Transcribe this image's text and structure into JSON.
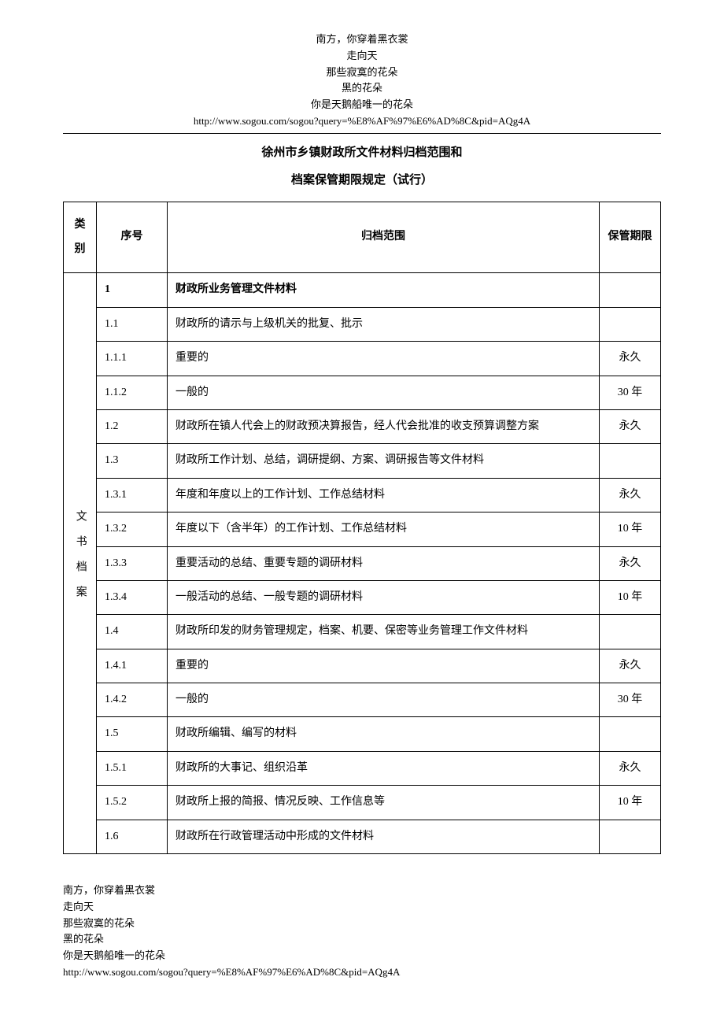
{
  "poem": {
    "l1": "南方，你穿着黑衣裳",
    "l2": "走向天",
    "l3": "那些寂寞的花朵",
    "l4": "黑的花朵",
    "l5": "你是天鹅船唯一的花朵",
    "url": "http://www.sogou.com/sogou?query=%E8%AF%97%E6%AD%8C&pid=AQg4A"
  },
  "title": "徐州市乡镇财政所文件材料归档范围和",
  "subtitle": "档案保管期限规定（试行）",
  "headers": {
    "category": "类别",
    "seq": "序号",
    "scope": "归档范围",
    "term": "保管期限"
  },
  "category_label": "文书档案",
  "rows": [
    {
      "seq": "1",
      "scope": "财政所业务管理文件材料",
      "term": "",
      "section": true
    },
    {
      "seq": "1.1",
      "scope": "财政所的请示与上级机关的批复、批示",
      "term": ""
    },
    {
      "seq": "1.1.1",
      "scope": "重要的",
      "term": "永久"
    },
    {
      "seq": "1.1.2",
      "scope": "一般的",
      "term": "30 年"
    },
    {
      "seq": "1.2",
      "scope": "财政所在镇人代会上的财政预决算报告，经人代会批准的收支预算调整方案",
      "term": "永久"
    },
    {
      "seq": "1.3",
      "scope": "财政所工作计划、总结，调研提纲、方案、调研报告等文件材料",
      "term": ""
    },
    {
      "seq": "1.3.1",
      "scope": "年度和年度以上的工作计划、工作总结材料",
      "term": "永久"
    },
    {
      "seq": "1.3.2",
      "scope": "年度以下（含半年）的工作计划、工作总结材料",
      "term": "10 年"
    },
    {
      "seq": "1.3.3",
      "scope": "重要活动的总结、重要专题的调研材料",
      "term": "永久"
    },
    {
      "seq": "1.3.4",
      "scope": "一般活动的总结、一般专题的调研材料",
      "term": "10 年"
    },
    {
      "seq": "1.4",
      "scope": "财政所印发的财务管理规定，档案、机要、保密等业务管理工作文件材料",
      "term": ""
    },
    {
      "seq": "1.4.1",
      "scope": "重要的",
      "term": "永久"
    },
    {
      "seq": "1.4.2",
      "scope": "一般的",
      "term": "30 年"
    },
    {
      "seq": "1.5",
      "scope": "财政所编辑、编写的材料",
      "term": ""
    },
    {
      "seq": "1.5.1",
      "scope": "财政所的大事记、组织沿革",
      "term": "永久"
    },
    {
      "seq": "1.5.2",
      "scope": "财政所上报的简报、情况反映、工作信息等",
      "term": "10 年"
    },
    {
      "seq": "1.6",
      "scope": "财政所在行政管理活动中形成的文件材料",
      "term": ""
    }
  ]
}
